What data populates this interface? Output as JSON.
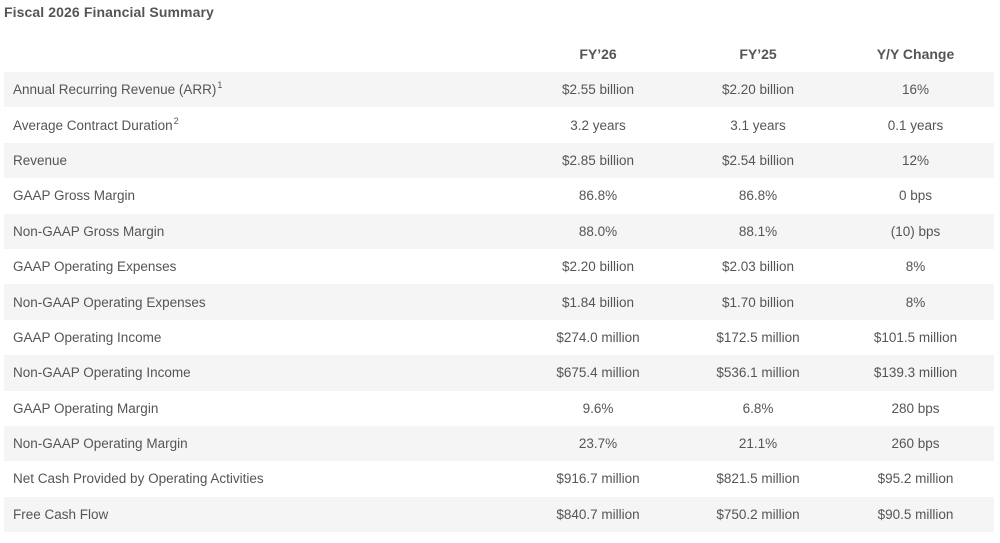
{
  "title": "Fiscal 2026 Financial Summary",
  "columns": [
    "",
    "FY’26",
    "FY’25",
    "Y/Y Change"
  ],
  "rows": [
    {
      "label": "Annual Recurring Revenue (ARR)",
      "footnote": "1",
      "fy26": "$2.55 billion",
      "fy25": "$2.20 billion",
      "yoy": "16%"
    },
    {
      "label": "Average Contract Duration",
      "footnote": "2",
      "fy26": "3.2 years",
      "fy25": "3.1 years",
      "yoy": "0.1 years"
    },
    {
      "label": "Revenue",
      "footnote": "",
      "fy26": "$2.85 billion",
      "fy25": "$2.54 billion",
      "yoy": "12%"
    },
    {
      "label": "GAAP Gross Margin",
      "footnote": "",
      "fy26": "86.8%",
      "fy25": "86.8%",
      "yoy": "0 bps"
    },
    {
      "label": "Non-GAAP Gross Margin",
      "footnote": "",
      "fy26": "88.0%",
      "fy25": "88.1%",
      "yoy": "(10) bps"
    },
    {
      "label": "GAAP Operating Expenses",
      "footnote": "",
      "fy26": "$2.20 billion",
      "fy25": "$2.03 billion",
      "yoy": "8%"
    },
    {
      "label": "Non-GAAP Operating Expenses",
      "footnote": "",
      "fy26": "$1.84 billion",
      "fy25": "$1.70 billion",
      "yoy": "8%"
    },
    {
      "label": "GAAP Operating Income",
      "footnote": "",
      "fy26": "$274.0 million",
      "fy25": "$172.5 million",
      "yoy": "$101.5 million"
    },
    {
      "label": "Non-GAAP Operating Income",
      "footnote": "",
      "fy26": "$675.4 million",
      "fy25": "$536.1 million",
      "yoy": "$139.3 million"
    },
    {
      "label": "GAAP Operating Margin",
      "footnote": "",
      "fy26": "9.6%",
      "fy25": "6.8%",
      "yoy": "280 bps"
    },
    {
      "label": "Non-GAAP Operating Margin",
      "footnote": "",
      "fy26": "23.7%",
      "fy25": "21.1%",
      "yoy": "260 bps"
    },
    {
      "label": "Net Cash Provided by Operating Activities",
      "footnote": "",
      "fy26": "$916.7 million",
      "fy25": "$821.5 million",
      "yoy": "$95.2 million"
    },
    {
      "label": "Free Cash Flow",
      "footnote": "",
      "fy26": "$840.7 million",
      "fy25": "$750.2 million",
      "yoy": "$90.5 million"
    }
  ]
}
